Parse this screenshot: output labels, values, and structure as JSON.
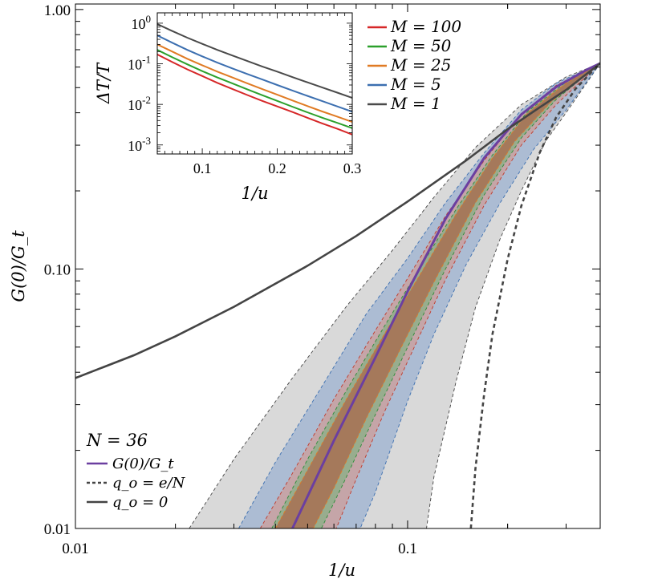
{
  "chart_data": [
    {
      "type": "line",
      "scale": "log-log",
      "xlabel": "1/u",
      "ylabel": "G(0)/G_t",
      "xlim": [
        0.01,
        0.38
      ],
      "ylim": [
        0.01,
        1.05
      ],
      "x_ticks": [
        {
          "value": 0.01,
          "label": "0.01"
        },
        {
          "value": 0.1,
          "label": "0.1"
        }
      ],
      "y_ticks": [
        {
          "value": 0.01,
          "label": "0.01"
        },
        {
          "value": 0.1,
          "label": "0.10"
        },
        {
          "value": 1.0,
          "label": "1.00"
        }
      ],
      "annotation": "N = 36",
      "legend_position": "bottom-left",
      "legend": [
        {
          "label": "G(0)/G_t",
          "color": "#6b3fa0",
          "style": "solid"
        },
        {
          "label": "q_o = e/N",
          "color": "#444444",
          "style": "dashed"
        },
        {
          "label": "q_o = 0",
          "color": "#444444",
          "style": "solid"
        }
      ],
      "series": [
        {
          "name": "G(0)/G_t",
          "color": "#6b3fa0",
          "style": "solid",
          "x": [
            0.045,
            0.06,
            0.08,
            0.1,
            0.13,
            0.17,
            0.22,
            0.28,
            0.35,
            0.38
          ],
          "y": [
            0.01,
            0.0218,
            0.0457,
            0.082,
            0.156,
            0.268,
            0.394,
            0.503,
            0.59,
            0.62
          ]
        },
        {
          "name": "q_o = e/N",
          "color": "#444444",
          "style": "dashed",
          "x": [
            0.155,
            0.16,
            0.17,
            0.18,
            0.2,
            0.22,
            0.25,
            0.28,
            0.32,
            0.35,
            0.38
          ],
          "y": [
            0.01,
            0.017,
            0.033,
            0.056,
            0.109,
            0.175,
            0.281,
            0.384,
            0.494,
            0.557,
            0.62
          ]
        },
        {
          "name": "q_o = 0",
          "color": "#444444",
          "style": "solid",
          "x": [
            0.01,
            0.015,
            0.02,
            0.03,
            0.05,
            0.07,
            0.1,
            0.15,
            0.2,
            0.25,
            0.3,
            0.38
          ],
          "y": [
            0.038,
            0.0465,
            0.055,
            0.0715,
            0.103,
            0.134,
            0.182,
            0.262,
            0.346,
            0.42,
            0.49,
            0.62
          ]
        }
      ],
      "bands": [
        {
          "color": "#d2d2d2",
          "edge_color": "#444444",
          "x": [
            0.022,
            0.03,
            0.045,
            0.065,
            0.09,
            0.12,
            0.16,
            0.22,
            0.3,
            0.38
          ],
          "upper": [
            0.01,
            0.0185,
            0.038,
            0.071,
            0.118,
            0.189,
            0.294,
            0.43,
            0.55,
            0.62
          ],
          "lower": [
            null,
            null,
            null,
            null,
            null,
            0.01,
            0.071,
            0.22,
            0.42,
            0.62
          ],
          "lower_x": [
            0.114,
            0.12,
            0.14,
            0.16,
            0.19,
            0.22,
            0.26,
            0.3,
            0.38
          ],
          "lower_y": [
            0.01,
            0.0158,
            0.037,
            0.071,
            0.131,
            0.2,
            0.31,
            0.4,
            0.62
          ]
        },
        {
          "color": "#a3b6d1",
          "edge_color": "#3c6fb0",
          "x": [
            0.031,
            0.04,
            0.055,
            0.075,
            0.1,
            0.13,
            0.17,
            0.22,
            0.28,
            0.38
          ],
          "upper": [
            0.01,
            0.018,
            0.035,
            0.067,
            0.11,
            0.18,
            0.28,
            0.41,
            0.52,
            0.62
          ],
          "lower_x": [
            0.072,
            0.08,
            0.1,
            0.12,
            0.15,
            0.19,
            0.24,
            0.3,
            0.38
          ],
          "lower_y": [
            0.01,
            0.0138,
            0.031,
            0.056,
            0.104,
            0.18,
            0.29,
            0.41,
            0.62
          ]
        },
        {
          "color": "#c9a1a0",
          "edge_color": "#c0392b",
          "x": [
            0.036,
            0.045,
            0.06,
            0.08,
            0.1,
            0.13,
            0.17,
            0.22,
            0.28,
            0.38
          ],
          "upper": [
            0.01,
            0.0163,
            0.0315,
            0.058,
            0.092,
            0.16,
            0.262,
            0.395,
            0.51,
            0.62
          ],
          "lower_x": [
            0.061,
            0.07,
            0.085,
            0.1,
            0.13,
            0.17,
            0.22,
            0.28,
            0.38
          ],
          "lower_y": [
            0.01,
            0.0155,
            0.028,
            0.044,
            0.091,
            0.176,
            0.3,
            0.43,
            0.62
          ]
        },
        {
          "color": "#8fae8a",
          "edge_color": "#2e8b3a",
          "x": [
            0.039,
            0.05,
            0.065,
            0.085,
            0.11,
            0.14,
            0.18,
            0.23,
            0.3,
            0.38
          ],
          "upper": [
            0.01,
            0.0185,
            0.0335,
            0.06,
            0.103,
            0.17,
            0.275,
            0.405,
            0.525,
            0.62
          ],
          "lower_x": [
            0.055,
            0.065,
            0.08,
            0.1,
            0.13,
            0.17,
            0.22,
            0.28,
            0.38
          ],
          "lower_y": [
            0.01,
            0.0155,
            0.0275,
            0.05,
            0.1,
            0.193,
            0.32,
            0.45,
            0.62
          ]
        },
        {
          "color": "#a77052",
          "edge_color": "#e07b24",
          "x": [
            0.04,
            0.05,
            0.065,
            0.085,
            0.11,
            0.14,
            0.18,
            0.23,
            0.3,
            0.38
          ],
          "upper": [
            0.01,
            0.0168,
            0.031,
            0.056,
            0.097,
            0.163,
            0.268,
            0.4,
            0.52,
            0.62
          ],
          "lower_x": [
            0.052,
            0.06,
            0.075,
            0.095,
            0.12,
            0.16,
            0.21,
            0.27,
            0.38
          ],
          "lower_y": [
            0.01,
            0.0143,
            0.0265,
            0.049,
            0.089,
            0.18,
            0.31,
            0.44,
            0.62
          ]
        }
      ]
    },
    {
      "type": "line",
      "scale": "semilog-y",
      "xlabel": "1/u",
      "ylabel": "ΔT/T",
      "xlim": [
        0.04,
        0.3
      ],
      "ylim": [
        0.0006,
        1.8
      ],
      "x_ticks": [
        {
          "value": 0.1,
          "label": "0.1"
        },
        {
          "value": 0.2,
          "label": "0.2"
        },
        {
          "value": 0.3,
          "label": "0.3"
        }
      ],
      "y_ticks": [
        {
          "value": 1,
          "base": "10",
          "exp": "0"
        },
        {
          "value": 0.1,
          "base": "10",
          "exp": "-1"
        },
        {
          "value": 0.01,
          "base": "10",
          "exp": "-2"
        },
        {
          "value": 0.001,
          "base": "10",
          "exp": "-3"
        }
      ],
      "legend_position": "top-right",
      "series": [
        {
          "name": "M = 100",
          "color": "#d62728",
          "x": [
            0.04,
            0.06,
            0.08,
            0.1,
            0.12,
            0.14,
            0.16,
            0.18,
            0.2,
            0.22,
            0.24,
            0.26,
            0.28,
            0.3
          ],
          "y": [
            0.17,
            0.11,
            0.073,
            0.05,
            0.034,
            0.024,
            0.017,
            0.0122,
            0.0089,
            0.0065,
            0.0047,
            0.0034,
            0.0025,
            0.0018
          ]
        },
        {
          "name": "M = 50",
          "color": "#2ca02c",
          "x": [
            0.04,
            0.06,
            0.08,
            0.1,
            0.12,
            0.14,
            0.16,
            0.18,
            0.2,
            0.22,
            0.24,
            0.26,
            0.28,
            0.3
          ],
          "y": [
            0.22,
            0.145,
            0.097,
            0.066,
            0.046,
            0.033,
            0.0235,
            0.0168,
            0.0122,
            0.0088,
            0.0064,
            0.0047,
            0.0035,
            0.0026
          ]
        },
        {
          "name": "M = 25",
          "color": "#e07b24",
          "x": [
            0.04,
            0.06,
            0.08,
            0.1,
            0.12,
            0.14,
            0.16,
            0.18,
            0.2,
            0.22,
            0.24,
            0.26,
            0.28,
            0.3
          ],
          "y": [
            0.3,
            0.2,
            0.133,
            0.092,
            0.064,
            0.046,
            0.033,
            0.0238,
            0.0173,
            0.0125,
            0.0091,
            0.0067,
            0.005,
            0.0037
          ]
        },
        {
          "name": "M = 5",
          "color": "#3c6fb0",
          "x": [
            0.04,
            0.06,
            0.08,
            0.1,
            0.12,
            0.14,
            0.16,
            0.18,
            0.2,
            0.22,
            0.24,
            0.26,
            0.28,
            0.3
          ],
          "y": [
            0.5,
            0.33,
            0.22,
            0.152,
            0.107,
            0.077,
            0.056,
            0.041,
            0.03,
            0.022,
            0.0162,
            0.012,
            0.0089,
            0.0066
          ]
        },
        {
          "name": "M = 1",
          "color": "#4a4a4a",
          "x": [
            0.04,
            0.06,
            0.08,
            0.1,
            0.12,
            0.14,
            0.16,
            0.18,
            0.2,
            0.22,
            0.24,
            0.26,
            0.28,
            0.3
          ],
          "y": [
            0.95,
            0.64,
            0.44,
            0.31,
            0.22,
            0.16,
            0.117,
            0.086,
            0.064,
            0.047,
            0.035,
            0.026,
            0.0195,
            0.0145
          ]
        }
      ]
    }
  ]
}
